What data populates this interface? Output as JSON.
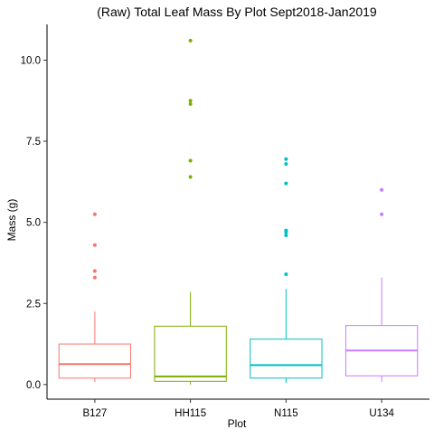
{
  "chart_data": {
    "type": "boxplot",
    "title": "(Raw) Total Leaf Mass By Plot Sept2018-Jan2019",
    "xlabel": "Plot",
    "ylabel": "Mass (g)",
    "ylim": [
      -0.45,
      11.1
    ],
    "yticks": [
      0.0,
      2.5,
      5.0,
      7.5,
      10.0
    ],
    "ytick_labels": [
      "0.0",
      "2.5",
      "5.0",
      "7.5",
      "10.0"
    ],
    "grid": false,
    "legend": "none",
    "categories": [
      "B127",
      "HH115",
      "N115",
      "U134"
    ],
    "series": [
      {
        "name": "B127",
        "color": "#F8766D",
        "whisker_low": 0.08,
        "q1": 0.2,
        "median": 0.63,
        "q3": 1.25,
        "whisker_high": 2.25,
        "outliers": [
          3.3,
          3.5,
          4.3,
          5.25
        ]
      },
      {
        "name": "HH115",
        "color": "#7CAE00",
        "whisker_low": 0.0,
        "q1": 0.1,
        "median": 0.25,
        "q3": 1.8,
        "whisker_high": 2.85,
        "outliers": [
          6.4,
          6.9,
          8.65,
          8.75,
          10.6
        ]
      },
      {
        "name": "N115",
        "color": "#00BFC4",
        "whisker_low": 0.05,
        "q1": 0.2,
        "median": 0.6,
        "q3": 1.4,
        "whisker_high": 2.95,
        "outliers": [
          3.4,
          4.6,
          4.7,
          4.75,
          6.2,
          6.8,
          6.95
        ]
      },
      {
        "name": "U134",
        "color": "#C77CFF",
        "whisker_low": 0.08,
        "q1": 0.27,
        "median": 1.05,
        "q3": 1.82,
        "whisker_high": 3.3,
        "outliers": [
          5.25,
          6.0
        ]
      }
    ]
  }
}
